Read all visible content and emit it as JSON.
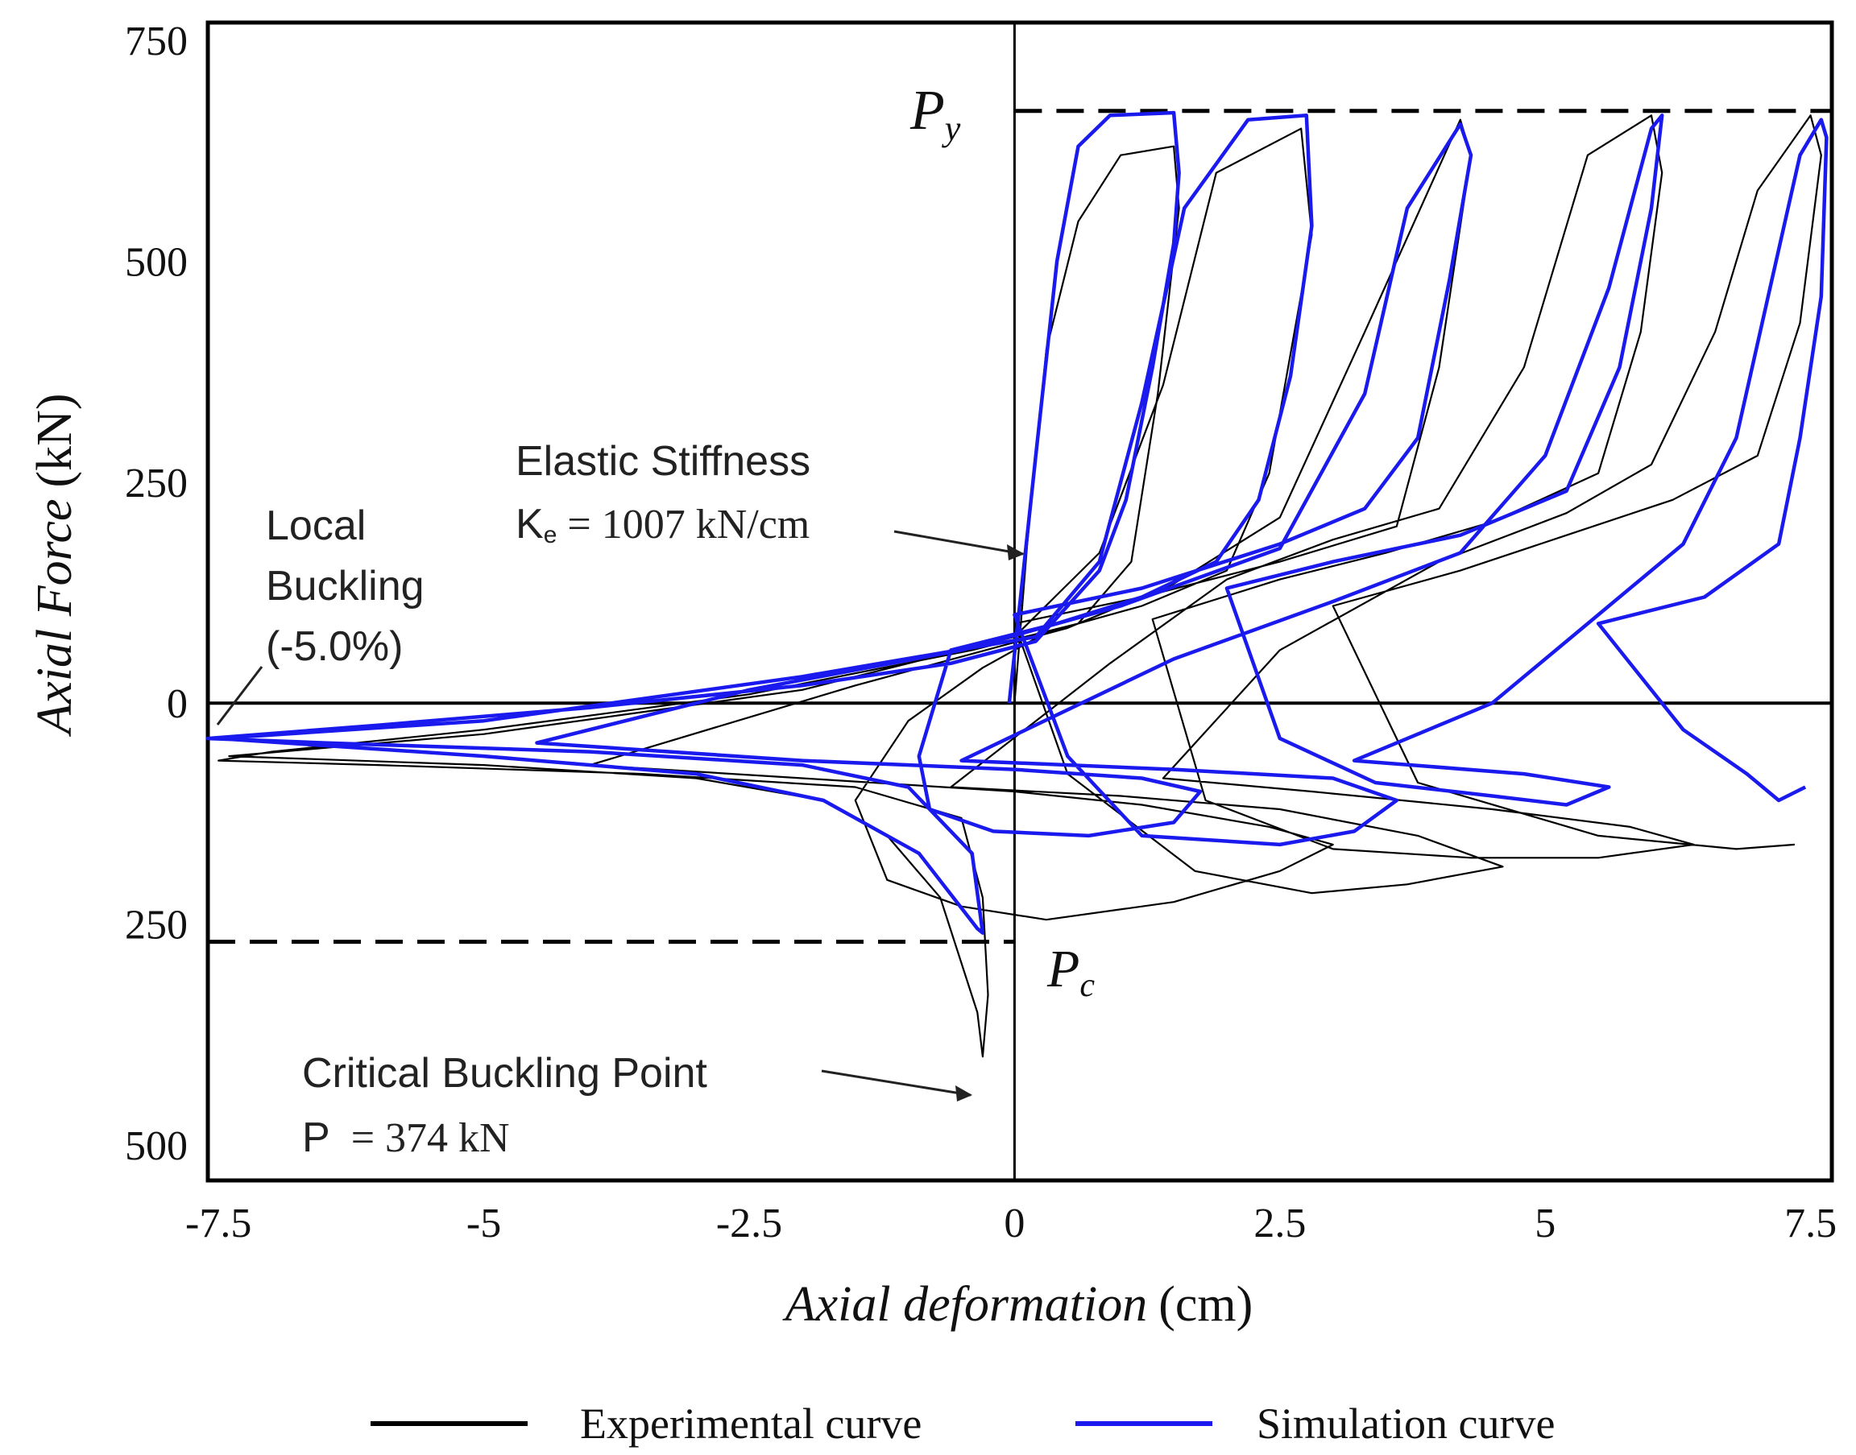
{
  "chart_data": {
    "type": "line",
    "xlabel": {
      "italic": "Axial deformation",
      "unit": "(cm)"
    },
    "ylabel": {
      "italic": "Axial Force",
      "unit": "(kN)"
    },
    "xlim": [
      -7.6,
      7.7
    ],
    "ylim": [
      -540,
      770
    ],
    "x_ticks": [
      {
        "value": -7.5,
        "label": "-7.5"
      },
      {
        "value": -5,
        "label": "-5"
      },
      {
        "value": -2.5,
        "label": "-2.5"
      },
      {
        "value": 0,
        "label": "0"
      },
      {
        "value": 2.5,
        "label": "2.5"
      },
      {
        "value": 5,
        "label": "5"
      },
      {
        "value": 7.5,
        "label": "7.5"
      }
    ],
    "y_ticks": [
      {
        "value": 750,
        "label": "750"
      },
      {
        "value": 500,
        "label": "500"
      },
      {
        "value": 250,
        "label": "250"
      },
      {
        "value": 0,
        "label": "0"
      },
      {
        "value": -250,
        "label": "250"
      },
      {
        "value": -500,
        "label": "500"
      }
    ],
    "reference_lines": [
      {
        "name": "Py",
        "symbol": "P",
        "subscript": "y",
        "value": 670
      },
      {
        "name": "Pc",
        "symbol": "P",
        "subscript": "c",
        "value": -270
      }
    ],
    "annotations": {
      "local_buckling": [
        "Local",
        "Buckling",
        "(-5.0%)"
      ],
      "elastic_stiffness": {
        "line1": "Elastic Stiffness",
        "symbol": "K",
        "subscript": "e",
        "value": " = 1007 kN/cm"
      },
      "critical_buckling": {
        "line1": "Critical Buckling Point",
        "symbol": "P",
        "value": "  = 374 kN"
      }
    },
    "series": [
      {
        "name": "Experimental curve",
        "color": "#000000",
        "points": [
          [
            0,
            0
          ],
          [
            0.12,
            180
          ],
          [
            0.3,
            400
          ],
          [
            0.6,
            545
          ],
          [
            1,
            620
          ],
          [
            1.5,
            630
          ],
          [
            1.55,
            560
          ],
          [
            1.35,
            350
          ],
          [
            1.1,
            160
          ],
          [
            0.6,
            90
          ],
          [
            -0.4,
            60
          ],
          [
            -2.5,
            10
          ],
          [
            -5,
            -30
          ],
          [
            -7,
            -55
          ],
          [
            -7.5,
            -65
          ],
          [
            -6,
            -70
          ],
          [
            -3.5,
            -80
          ],
          [
            -1.5,
            -95
          ],
          [
            -0.5,
            -130
          ],
          [
            -0.3,
            -220
          ],
          [
            -0.25,
            -330
          ],
          [
            -0.3,
            -400
          ],
          [
            -0.35,
            -350
          ],
          [
            -0.7,
            -220
          ],
          [
            -1.2,
            -150
          ],
          [
            -1.8,
            -110
          ],
          [
            -3,
            -85
          ],
          [
            -5,
            -70
          ],
          [
            -7.4,
            -60
          ],
          [
            -5,
            -35
          ],
          [
            -2,
            15
          ],
          [
            0,
            75
          ],
          [
            0.8,
            170
          ],
          [
            1.4,
            360
          ],
          [
            1.9,
            600
          ],
          [
            2.7,
            650
          ],
          [
            2.8,
            530
          ],
          [
            2.4,
            260
          ],
          [
            2,
            150
          ],
          [
            1.2,
            110
          ],
          [
            0.3,
            80
          ],
          [
            -0.3,
            40
          ],
          [
            -1,
            -20
          ],
          [
            -1.5,
            -110
          ],
          [
            -1.2,
            -200
          ],
          [
            -0.5,
            -230
          ],
          [
            0.3,
            -245
          ],
          [
            1.5,
            -225
          ],
          [
            2.5,
            -190
          ],
          [
            3,
            -160
          ],
          [
            2.4,
            -140
          ],
          [
            1.2,
            -115
          ],
          [
            0,
            -100
          ],
          [
            -2,
            -85
          ],
          [
            -4,
            -70
          ],
          [
            -1.5,
            20
          ],
          [
            0.5,
            85
          ],
          [
            1.5,
            135
          ],
          [
            2.5,
            210
          ],
          [
            3.3,
            420
          ],
          [
            4.2,
            660
          ],
          [
            4.3,
            620
          ],
          [
            4,
            380
          ],
          [
            3.6,
            200
          ],
          [
            2.5,
            160
          ],
          [
            1.2,
            120
          ],
          [
            0,
            90
          ],
          [
            0.5,
            -80
          ],
          [
            1.7,
            -190
          ],
          [
            2.8,
            -215
          ],
          [
            3.7,
            -205
          ],
          [
            4.6,
            -185
          ],
          [
            3.8,
            -150
          ],
          [
            2.5,
            -120
          ],
          [
            1,
            -105
          ],
          [
            -0.6,
            -95
          ],
          [
            0.9,
            45
          ],
          [
            2,
            140
          ],
          [
            3,
            185
          ],
          [
            4,
            220
          ],
          [
            4.8,
            380
          ],
          [
            5.4,
            620
          ],
          [
            6,
            665
          ],
          [
            6.1,
            600
          ],
          [
            5.9,
            420
          ],
          [
            5.5,
            260
          ],
          [
            4.5,
            205
          ],
          [
            3.5,
            170
          ],
          [
            2.5,
            140
          ],
          [
            1.3,
            95
          ],
          [
            1.8,
            -110
          ],
          [
            3,
            -165
          ],
          [
            4.3,
            -175
          ],
          [
            5.5,
            -175
          ],
          [
            6.4,
            -160
          ],
          [
            5.8,
            -140
          ],
          [
            4.5,
            -120
          ],
          [
            2.8,
            -100
          ],
          [
            1.4,
            -85
          ],
          [
            2.5,
            60
          ],
          [
            4,
            160
          ],
          [
            5.2,
            215
          ],
          [
            6,
            270
          ],
          [
            6.6,
            420
          ],
          [
            7,
            580
          ],
          [
            7.5,
            665
          ],
          [
            7.6,
            620
          ],
          [
            7.4,
            430
          ],
          [
            7,
            280
          ],
          [
            6.2,
            230
          ],
          [
            5.2,
            190
          ],
          [
            4.2,
            150
          ],
          [
            3,
            110
          ],
          [
            3.8,
            -90
          ],
          [
            5.5,
            -150
          ],
          [
            6.8,
            -165
          ],
          [
            7.35,
            -160
          ]
        ]
      },
      {
        "name": "Simulation curve",
        "color": "#1a1aee",
        "points": [
          [
            -0.05,
            0
          ],
          [
            0.2,
            280
          ],
          [
            0.4,
            500
          ],
          [
            0.6,
            630
          ],
          [
            0.9,
            665
          ],
          [
            1.5,
            668
          ],
          [
            1.55,
            600
          ],
          [
            1.5,
            520
          ],
          [
            1.3,
            380
          ],
          [
            1.05,
            230
          ],
          [
            0.8,
            150
          ],
          [
            0.2,
            70
          ],
          [
            -0.6,
            45
          ],
          [
            -2,
            20
          ],
          [
            -4,
            -5
          ],
          [
            -6,
            -25
          ],
          [
            -7.6,
            -40
          ],
          [
            -6.5,
            -45
          ],
          [
            -4,
            -55
          ],
          [
            -2,
            -70
          ],
          [
            -1,
            -95
          ],
          [
            -0.4,
            -170
          ],
          [
            -0.3,
            -260
          ],
          [
            -0.35,
            -255
          ],
          [
            -0.9,
            -170
          ],
          [
            -1.8,
            -110
          ],
          [
            -3,
            -80
          ],
          [
            -5,
            -60
          ],
          [
            -7.5,
            -40
          ],
          [
            -5,
            -20
          ],
          [
            -2,
            30
          ],
          [
            0.2,
            75
          ],
          [
            0.8,
            160
          ],
          [
            1.2,
            340
          ],
          [
            1.6,
            560
          ],
          [
            2.2,
            660
          ],
          [
            2.75,
            665
          ],
          [
            2.8,
            540
          ],
          [
            2.6,
            370
          ],
          [
            2.3,
            230
          ],
          [
            1.9,
            160
          ],
          [
            1.2,
            120
          ],
          [
            0.4,
            90
          ],
          [
            -0.6,
            60
          ],
          [
            -0.9,
            -60
          ],
          [
            -0.8,
            -120
          ],
          [
            -0.2,
            -145
          ],
          [
            0.7,
            -150
          ],
          [
            1.5,
            -135
          ],
          [
            1.75,
            -100
          ],
          [
            1.2,
            -85
          ],
          [
            0,
            -75
          ],
          [
            -2,
            -65
          ],
          [
            -4.5,
            -45
          ],
          [
            -2.5,
            15
          ],
          [
            -0.5,
            60
          ],
          [
            1,
            110
          ],
          [
            2.5,
            175
          ],
          [
            3.3,
            350
          ],
          [
            3.7,
            560
          ],
          [
            4.2,
            655
          ],
          [
            4.3,
            620
          ],
          [
            4.1,
            480
          ],
          [
            3.8,
            300
          ],
          [
            3.3,
            220
          ],
          [
            2.5,
            180
          ],
          [
            1.2,
            130
          ],
          [
            0,
            100
          ],
          [
            0.5,
            -60
          ],
          [
            1.2,
            -150
          ],
          [
            2.5,
            -160
          ],
          [
            3.2,
            -145
          ],
          [
            3.6,
            -110
          ],
          [
            3,
            -85
          ],
          [
            1.5,
            -75
          ],
          [
            -0.5,
            -65
          ],
          [
            1.5,
            50
          ],
          [
            3,
            115
          ],
          [
            4.2,
            170
          ],
          [
            5,
            280
          ],
          [
            5.6,
            470
          ],
          [
            6,
            650
          ],
          [
            6.1,
            665
          ],
          [
            6,
            560
          ],
          [
            5.7,
            380
          ],
          [
            5.2,
            240
          ],
          [
            4.2,
            190
          ],
          [
            3,
            160
          ],
          [
            2,
            130
          ],
          [
            2.5,
            -40
          ],
          [
            3.4,
            -90
          ],
          [
            4.5,
            -105
          ],
          [
            5.2,
            -115
          ],
          [
            5.6,
            -95
          ],
          [
            4.8,
            -80
          ],
          [
            3.2,
            -65
          ],
          [
            4.5,
            0
          ],
          [
            5.5,
            100
          ],
          [
            6.3,
            180
          ],
          [
            6.8,
            300
          ],
          [
            7.1,
            460
          ],
          [
            7.4,
            620
          ],
          [
            7.6,
            660
          ],
          [
            7.65,
            640
          ],
          [
            7.6,
            460
          ],
          [
            7.4,
            300
          ],
          [
            7.2,
            180
          ],
          [
            6.5,
            120
          ],
          [
            5.5,
            90
          ],
          [
            6.3,
            -30
          ],
          [
            6.9,
            -80
          ],
          [
            7.2,
            -110
          ],
          [
            7.45,
            -95
          ]
        ]
      }
    ],
    "legend": [
      {
        "label": "Experimental curve",
        "color": "#000000"
      },
      {
        "label": "Simulation curve",
        "color": "#1a1aee"
      }
    ]
  }
}
